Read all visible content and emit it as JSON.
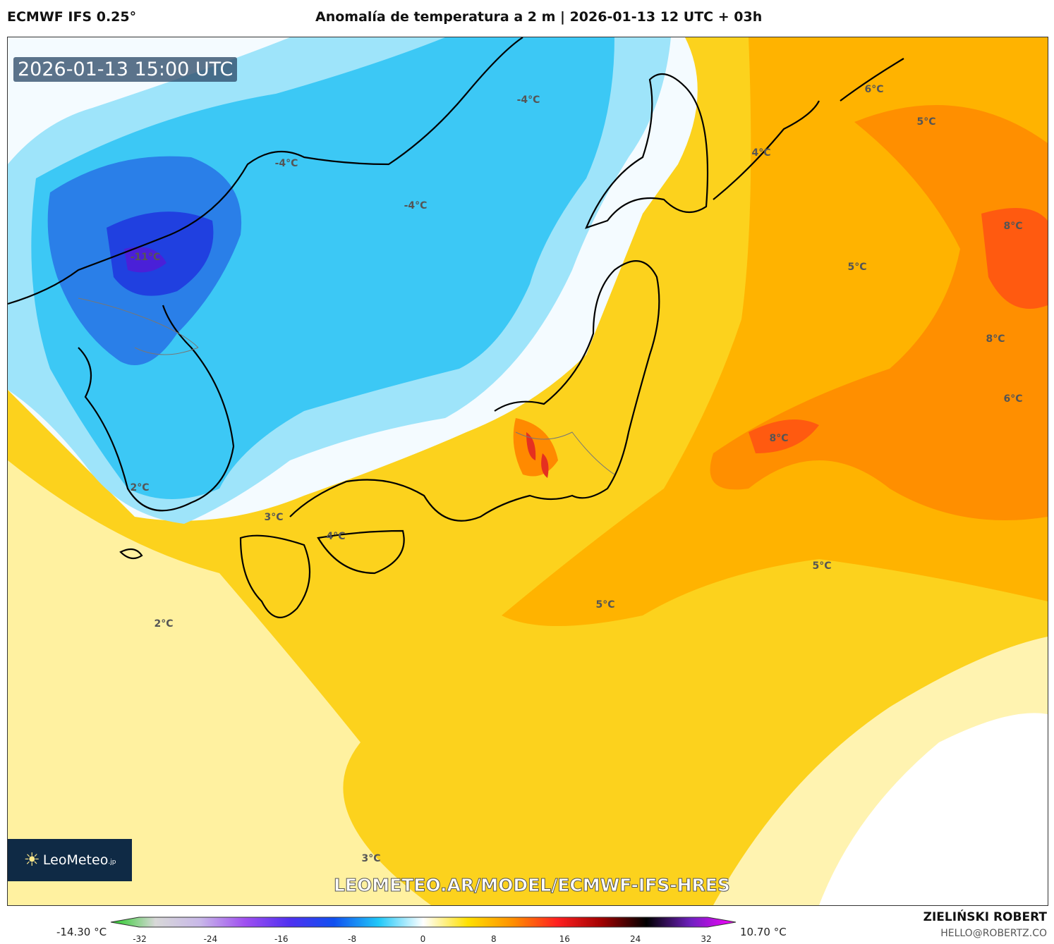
{
  "header": {
    "model": "ECMWF IFS 0.25°",
    "title": "Anomalía de temperatura a 2 m | 2026-01-13 12 UTC + 03h"
  },
  "map": {
    "valid_time": "2026-01-13 15:00 UTC",
    "contour_labels": [
      "-4°C",
      "-4°C",
      "-4°C",
      "-11°C",
      "2°C",
      "3°C",
      "4°C",
      "2°C",
      "3°C",
      "5°C",
      "5°C",
      "8°C",
      "6°C",
      "8°C",
      "5°C",
      "8°C",
      "5°C",
      "6°C",
      "4°C"
    ],
    "logo_text": "LeoMeteo",
    "logo_suffix": ".jp",
    "url": "LEOMETEO.AR/MODEL/ECMWF-IFS-HRES"
  },
  "colorbar": {
    "min_label": "-14.30 °C",
    "max_label": "10.70 °C",
    "ticks": [
      "-32",
      "-24",
      "-16",
      "-8",
      "0",
      "8",
      "16",
      "24",
      "32"
    ],
    "range": [
      -32,
      32
    ],
    "colors": [
      "#22cc22",
      "#d8d8d8",
      "#c8b8e8",
      "#a050f0",
      "#5030f0",
      "#1050f0",
      "#20c8f8",
      "#ffffff",
      "#ffe000",
      "#ff9000",
      "#ff2020",
      "#a00000",
      "#000000",
      "#7020c0",
      "#ff00ff"
    ]
  },
  "footer": {
    "author": "ZIELIŃSKI ROBERT",
    "email": "HELLO@ROBERTZ.CO"
  }
}
